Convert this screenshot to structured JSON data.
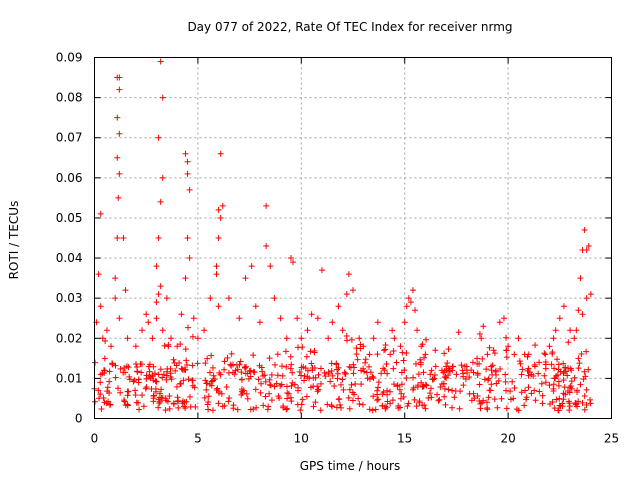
{
  "chart_data": {
    "type": "scatter",
    "title": "Day 077 of 2022, Rate Of TEC Index for receiver nrmg",
    "xlabel": "GPS time / hours",
    "ylabel": "ROTI / TECUs",
    "xlim": [
      0,
      25
    ],
    "ylim": [
      0,
      0.09
    ],
    "x_ticks": [
      0,
      5,
      10,
      15,
      20,
      25
    ],
    "x_tick_labels": [
      "0",
      "5",
      "10",
      "15",
      "20",
      "25"
    ],
    "y_ticks": [
      0,
      0.01,
      0.02,
      0.03,
      0.04,
      0.05,
      0.06,
      0.07,
      0.08,
      0.09
    ],
    "y_tick_labels": [
      "0",
      "0.01",
      "0.02",
      "0.03",
      "0.04",
      "0.05",
      "0.06",
      "0.07",
      "0.08",
      "0.09"
    ],
    "grid": true,
    "marker": "+",
    "series": [
      {
        "name": "ROTI",
        "color": "#ff0000",
        "x": [
          0.1,
          0.2,
          0.3,
          0.4,
          0.5,
          0.6,
          0.8,
          0.3,
          0.5,
          1.0,
          1.1,
          1.15,
          1.2,
          1.1,
          1.2,
          1.1,
          1.2,
          1.1,
          1.2,
          1.0,
          1.2,
          1.4,
          1.5,
          1.6,
          2.0,
          2.3,
          2.5,
          2.6,
          2.8,
          3.0,
          3.1,
          3.2,
          3.3,
          3.1,
          3.2,
          3.0,
          3.1,
          3.3,
          3.2,
          3.0,
          3.3,
          3.5,
          3.7,
          4.0,
          4.2,
          4.4,
          4.5,
          4.6,
          4.5,
          4.4,
          4.5,
          4.6,
          4.8,
          5.0,
          5.3,
          5.6,
          5.9,
          6.0,
          6.1,
          6.2,
          6.0,
          6.1,
          5.9,
          6.0,
          6.5,
          7.0,
          7.3,
          7.6,
          7.8,
          8.0,
          8.3,
          8.3,
          8.5,
          8.7,
          9.0,
          9.3,
          9.5,
          9.6,
          9.8,
          10.0,
          10.3,
          10.5,
          10.8,
          11.0,
          11.3,
          11.5,
          11.8,
          12.0,
          12.2,
          12.3,
          12.5,
          12.8,
          13.0,
          13.3,
          13.5,
          13.7,
          14.0,
          14.3,
          14.5,
          14.8,
          15.0,
          15.1,
          15.2,
          15.3,
          15.4,
          15.5,
          15.6,
          15.8,
          16.0,
          16.3,
          16.5,
          16.8,
          17.0,
          17.3,
          17.5,
          17.8,
          18.0,
          18.3,
          18.5,
          18.7,
          18.8,
          19.0,
          19.3,
          19.6,
          19.8,
          20.0,
          20.3,
          20.5,
          20.8,
          21.0,
          21.3,
          21.5,
          21.8,
          22.0,
          22.2,
          22.3,
          22.5,
          22.7,
          23.0,
          23.2,
          23.3,
          23.4,
          23.5,
          23.6,
          23.7,
          23.8,
          23.9,
          24.0,
          23.4,
          23.6,
          23.8
        ],
        "y": [
          0.024,
          0.036,
          0.051,
          0.02,
          0.015,
          0.022,
          0.018,
          0.028,
          0.012,
          0.035,
          0.045,
          0.055,
          0.061,
          0.065,
          0.071,
          0.075,
          0.082,
          0.085,
          0.085,
          0.03,
          0.025,
          0.045,
          0.032,
          0.02,
          0.018,
          0.022,
          0.026,
          0.024,
          0.02,
          0.038,
          0.045,
          0.054,
          0.06,
          0.031,
          0.033,
          0.025,
          0.07,
          0.08,
          0.089,
          0.029,
          0.022,
          0.03,
          0.02,
          0.018,
          0.026,
          0.035,
          0.045,
          0.057,
          0.064,
          0.066,
          0.061,
          0.04,
          0.025,
          0.02,
          0.022,
          0.03,
          0.036,
          0.045,
          0.05,
          0.053,
          0.052,
          0.066,
          0.038,
          0.028,
          0.03,
          0.025,
          0.035,
          0.038,
          0.028,
          0.024,
          0.043,
          0.053,
          0.038,
          0.03,
          0.025,
          0.02,
          0.04,
          0.039,
          0.025,
          0.02,
          0.022,
          0.026,
          0.025,
          0.037,
          0.02,
          0.024,
          0.028,
          0.022,
          0.031,
          0.036,
          0.032,
          0.02,
          0.018,
          0.016,
          0.02,
          0.024,
          0.017,
          0.016,
          0.02,
          0.018,
          0.024,
          0.028,
          0.03,
          0.029,
          0.032,
          0.027,
          0.022,
          0.018,
          0.016,
          0.012,
          0.013,
          0.012,
          0.013,
          0.012,
          0.011,
          0.012,
          0.013,
          0.014,
          0.015,
          0.02,
          0.023,
          0.016,
          0.017,
          0.024,
          0.025,
          0.018,
          0.016,
          0.02,
          0.016,
          0.016,
          0.013,
          0.014,
          0.016,
          0.018,
          0.02,
          0.022,
          0.025,
          0.028,
          0.022,
          0.02,
          0.022,
          0.027,
          0.035,
          0.042,
          0.047,
          0.042,
          0.043,
          0.031,
          0.015,
          0.026,
          0.03
        ]
      }
    ]
  }
}
